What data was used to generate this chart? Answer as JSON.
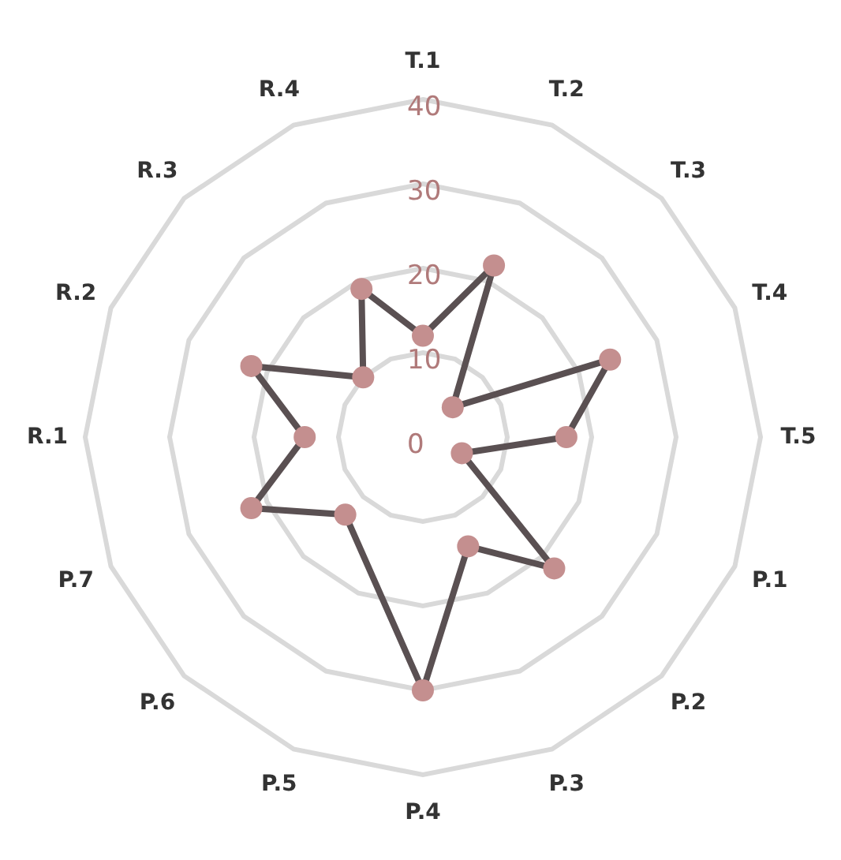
{
  "chart_data": {
    "type": "radar",
    "categories": [
      "T.1",
      "T.2",
      "T.3",
      "T.4",
      "T.5",
      "P.1",
      "P.2",
      "P.3",
      "P.4",
      "P.5",
      "P.6",
      "P.7",
      "R.1",
      "R.2",
      "R.3",
      "R.4"
    ],
    "series": [
      {
        "color": "#5a5052",
        "values": [
          12,
          22,
          5,
          24,
          17,
          5,
          22,
          14,
          30,
          null,
          13,
          22,
          14,
          22,
          10,
          19
        ]
      }
    ],
    "ylim": [
      0,
      40
    ],
    "yticks": [
      0,
      10,
      20,
      30,
      40
    ],
    "grid": true,
    "marker": "circle",
    "line_style": "solid"
  }
}
